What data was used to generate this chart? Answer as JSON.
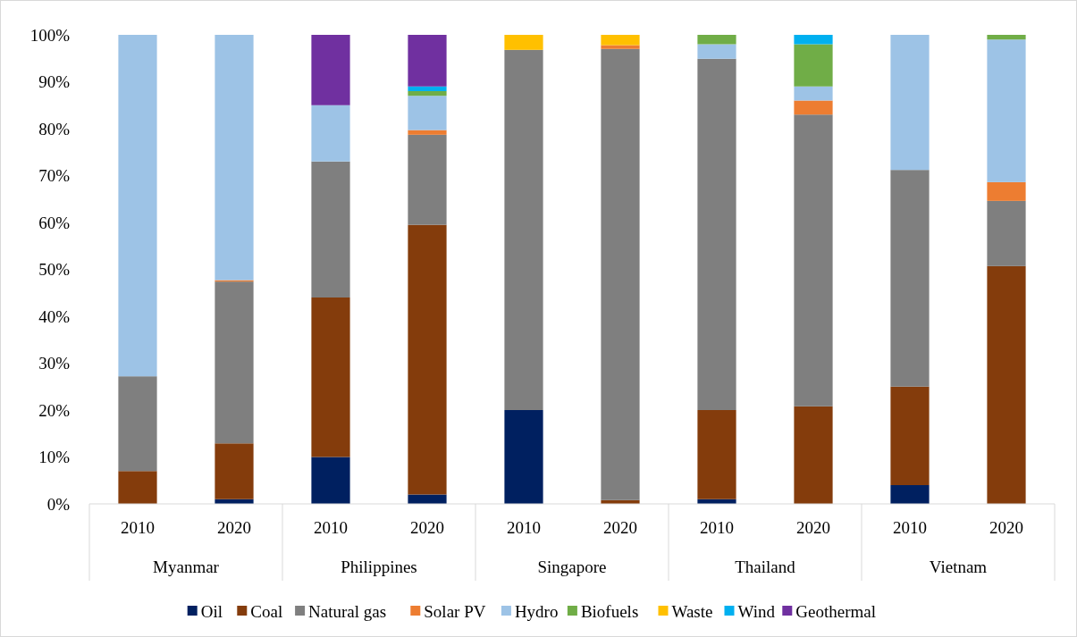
{
  "chart_data": {
    "type": "bar",
    "stacked": true,
    "categories": [
      "2010",
      "2020",
      "2010",
      "2020",
      "2010",
      "2020",
      "2010",
      "2020",
      "2010",
      "2020"
    ],
    "annotations": [
      "Myanmar",
      "Philippines",
      "Singapore",
      "Thailand",
      "Vietnam"
    ],
    "ylim": [
      0,
      100
    ],
    "yticks": [
      {
        "value": 0,
        "label": "0%"
      },
      {
        "value": 10,
        "label": "10%"
      },
      {
        "value": 20,
        "label": "20%"
      },
      {
        "value": 30,
        "label": "30%"
      },
      {
        "value": 40,
        "label": "40%"
      },
      {
        "value": 50,
        "label": "50%"
      },
      {
        "value": 60,
        "label": "60%"
      },
      {
        "value": 70,
        "label": "70%"
      },
      {
        "value": 80,
        "label": "80%"
      },
      {
        "value": 90,
        "label": "90%"
      },
      {
        "value": 100,
        "label": "100%"
      }
    ],
    "grid": false,
    "legend": "bottom",
    "series": [
      {
        "name": "Oil",
        "color": "#002060",
        "values": [
          0,
          1,
          10,
          2,
          20,
          0,
          1,
          0,
          4,
          0
        ]
      },
      {
        "name": "Coal",
        "color": "#843c0c",
        "values": [
          7,
          11.9,
          34,
          57.5,
          0,
          0.8,
          19,
          20.8,
          21,
          50.7
        ]
      },
      {
        "name": "Natural gas",
        "color": "#7f7f7f",
        "values": [
          20.2,
          34.5,
          29,
          19.2,
          76.8,
          96.2,
          74.9,
          62.2,
          46.2,
          13.9
        ]
      },
      {
        "name": "Solar PV",
        "color": "#ed7d31",
        "values": [
          0,
          0.3,
          0,
          1,
          0,
          0.8,
          0,
          3,
          0,
          4
        ]
      },
      {
        "name": "Hydro",
        "color": "#9dc3e6",
        "values": [
          72.8,
          52.3,
          12,
          7.3,
          0,
          0,
          3.1,
          3,
          28.8,
          30.4
        ]
      },
      {
        "name": "Biofuels",
        "color": "#70ad47",
        "values": [
          0,
          0,
          0,
          1,
          0,
          0,
          2,
          9,
          0,
          1
        ]
      },
      {
        "name": "Waste",
        "color": "#ffc000",
        "values": [
          0,
          0,
          0,
          0,
          3.2,
          2.2,
          0,
          0,
          0,
          0
        ]
      },
      {
        "name": "Wind",
        "color": "#00b0f0",
        "values": [
          0,
          0,
          0,
          1,
          0,
          0,
          0,
          2,
          0,
          0
        ]
      },
      {
        "name": "Geothermal",
        "color": "#7030a0",
        "values": [
          0,
          0,
          15,
          11,
          0,
          0,
          0,
          0,
          0,
          0
        ]
      }
    ]
  }
}
